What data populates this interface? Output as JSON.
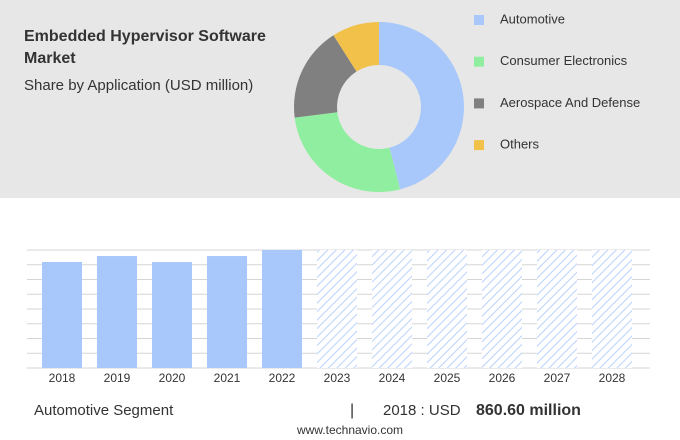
{
  "chart_data": [
    {
      "type": "pie",
      "title": "Embedded Hypervisor Software Market",
      "subtitle": "Share by Application (USD million)",
      "categories": [
        "Automotive",
        "Consumer Electronics",
        "Aerospace And Defense",
        "Others"
      ],
      "values": [
        46,
        27,
        18,
        9
      ],
      "colors": [
        "#a8c8fb",
        "#90eea0",
        "#808080",
        "#f2c14a"
      ]
    },
    {
      "type": "bar",
      "categories": [
        "2018",
        "2019",
        "2020",
        "2021",
        "2022",
        "2023",
        "2024",
        "2025",
        "2026",
        "2027",
        "2028"
      ],
      "values": [
        860.6,
        909,
        860,
        909,
        958,
        null,
        null,
        null,
        null,
        null,
        null
      ],
      "color": "#a8c8fb",
      "grid": true,
      "footer": {
        "segment": "Automotive Segment",
        "separator": "|",
        "prefix": "2018 : USD",
        "amount": "860.60 million",
        "source": "www.technavio.com"
      }
    }
  ]
}
